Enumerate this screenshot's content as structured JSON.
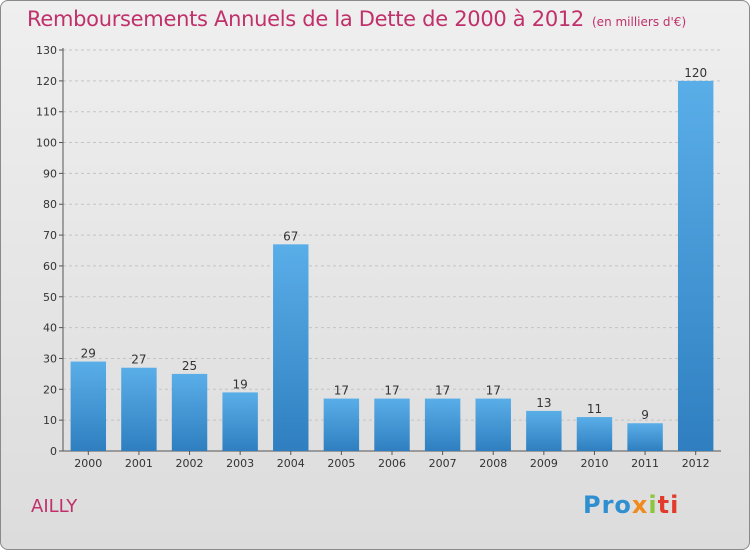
{
  "title": "Remboursements Annuels de la Dette de 2000 à 2012",
  "unit": "(en milliers d'€)",
  "commune": "AILLY",
  "logo": [
    "Pro",
    "x",
    "i",
    "ti"
  ],
  "colors": {
    "title": "#c0306a",
    "bar_top": "#5aaee8",
    "bar_bottom": "#2f7fc0"
  },
  "chart_data": {
    "type": "bar",
    "categories": [
      "2000",
      "2001",
      "2002",
      "2003",
      "2004",
      "2005",
      "2006",
      "2007",
      "2008",
      "2009",
      "2010",
      "2011",
      "2012"
    ],
    "values": [
      29,
      27,
      25,
      19,
      67,
      17,
      17,
      17,
      17,
      13,
      11,
      9,
      120
    ],
    "title": "Remboursements Annuels de la Dette de 2000 à 2012",
    "xlabel": "",
    "ylabel": "",
    "ylim": [
      0,
      130
    ],
    "yticks": [
      0,
      10,
      20,
      30,
      40,
      50,
      60,
      70,
      80,
      90,
      100,
      110,
      120,
      130
    ],
    "grid": true
  }
}
